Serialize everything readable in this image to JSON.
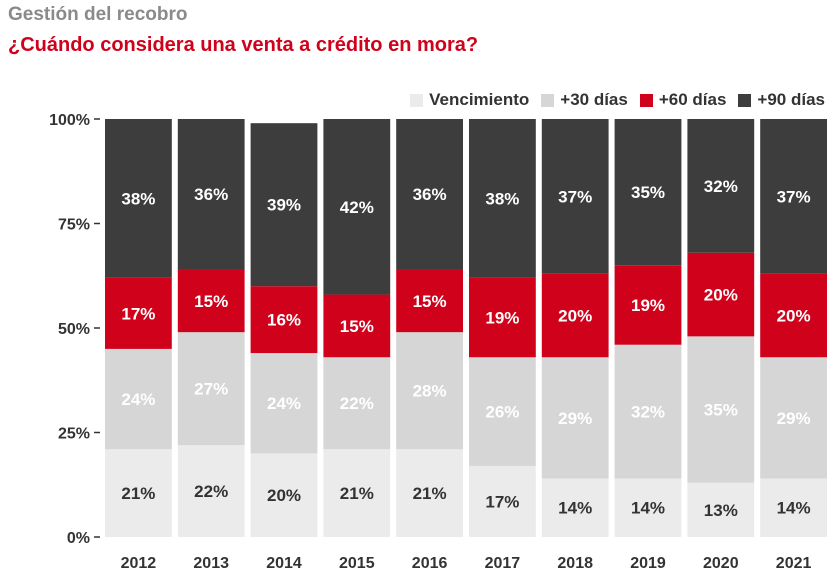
{
  "header": {
    "supertitle": "Gestión del recobro",
    "title": "¿Cuándo considera una venta a crédito en mora?"
  },
  "colors": {
    "title_red": "#d0021b",
    "supertitle_gray": "#8a8a8a",
    "axis_text": "#333333"
  },
  "chart_data": {
    "type": "bar",
    "stacked": true,
    "categories": [
      "2012",
      "2013",
      "2014",
      "2015",
      "2016",
      "2017",
      "2018",
      "2019",
      "2020",
      "2021"
    ],
    "series": [
      {
        "name": "Vencimiento",
        "color": "#ebebeb",
        "label_color": "#333333",
        "values": [
          21,
          22,
          20,
          21,
          21,
          17,
          14,
          14,
          13,
          14
        ]
      },
      {
        "name": "+30 días",
        "color": "#d6d6d6",
        "label_color": "#ffffff",
        "values": [
          24,
          27,
          24,
          22,
          28,
          26,
          29,
          32,
          35,
          29
        ]
      },
      {
        "name": "+60 días",
        "color": "#d0021b",
        "label_color": "#ffffff",
        "values": [
          17,
          15,
          16,
          15,
          15,
          19,
          20,
          19,
          20,
          20
        ]
      },
      {
        "name": "+90 días",
        "color": "#3d3d3d",
        "label_color": "#ffffff",
        "values": [
          38,
          36,
          39,
          42,
          36,
          38,
          37,
          35,
          32,
          37
        ]
      }
    ],
    "value_suffix": "%",
    "yticks": [
      "0%",
      "25%",
      "50%",
      "75%",
      "100%"
    ],
    "ylim": [
      0,
      100
    ],
    "legend_position": "top-right"
  }
}
